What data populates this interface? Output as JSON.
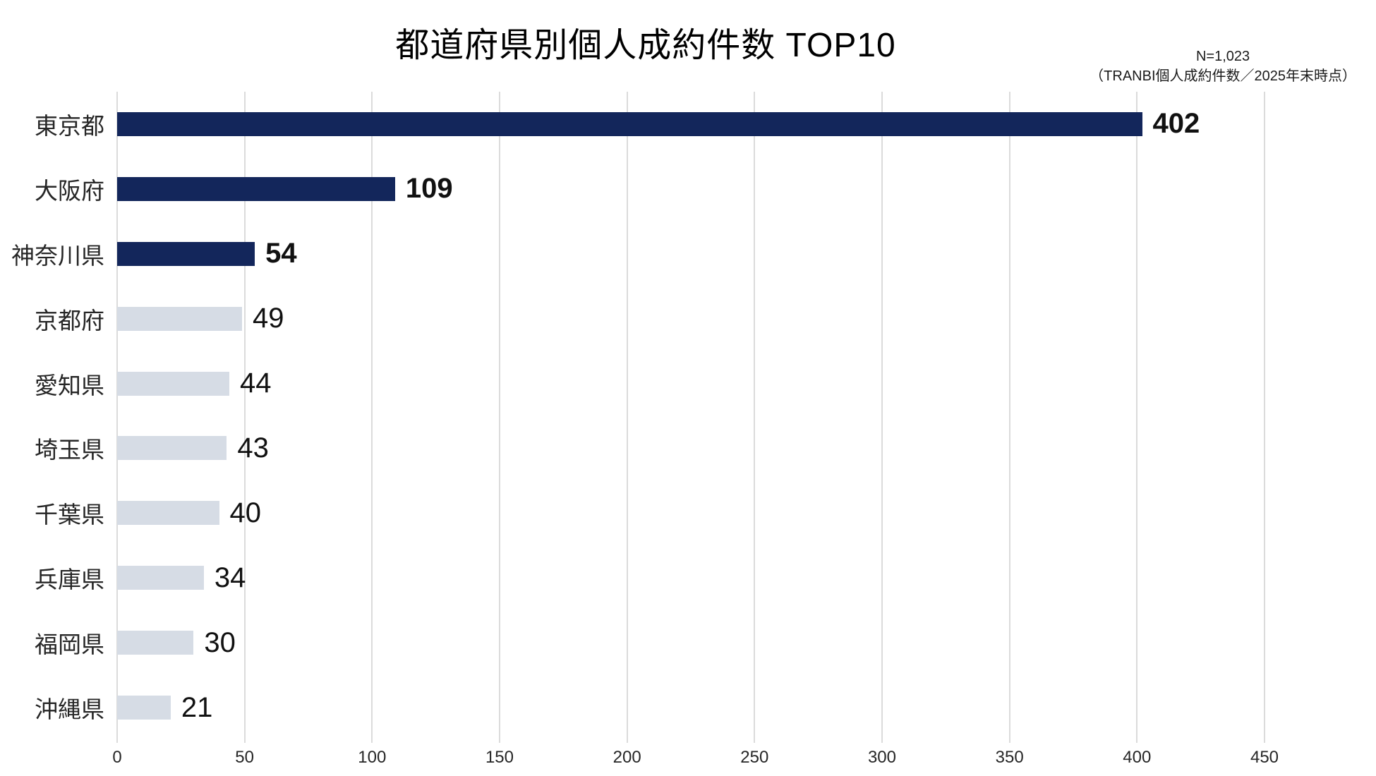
{
  "title": "都道府県別個人成約件数 TOP10",
  "note": {
    "line1": "N=1,023",
    "line2": "（TRANBI個人成約件数／2025年末時点）"
  },
  "chart_data": {
    "type": "bar",
    "orientation": "horizontal",
    "title": "都道府県別個人成約件数 TOP10",
    "categories": [
      "東京都",
      "大阪府",
      "神奈川県",
      "京都府",
      "愛知県",
      "埼玉県",
      "千葉県",
      "兵庫県",
      "福岡県",
      "沖縄県"
    ],
    "values": [
      402,
      109,
      54,
      49,
      44,
      43,
      40,
      34,
      30,
      21
    ],
    "highlighted": [
      true,
      true,
      true,
      false,
      false,
      false,
      false,
      false,
      false,
      false
    ],
    "xlim": [
      0,
      450
    ],
    "xticks": [
      0,
      50,
      100,
      150,
      200,
      250,
      300,
      350,
      400,
      450
    ],
    "grid": true,
    "legend": false,
    "colors": {
      "highlight": "#13265B",
      "normal": "#D6DCE5",
      "gridline": "#DBDBDB"
    }
  }
}
